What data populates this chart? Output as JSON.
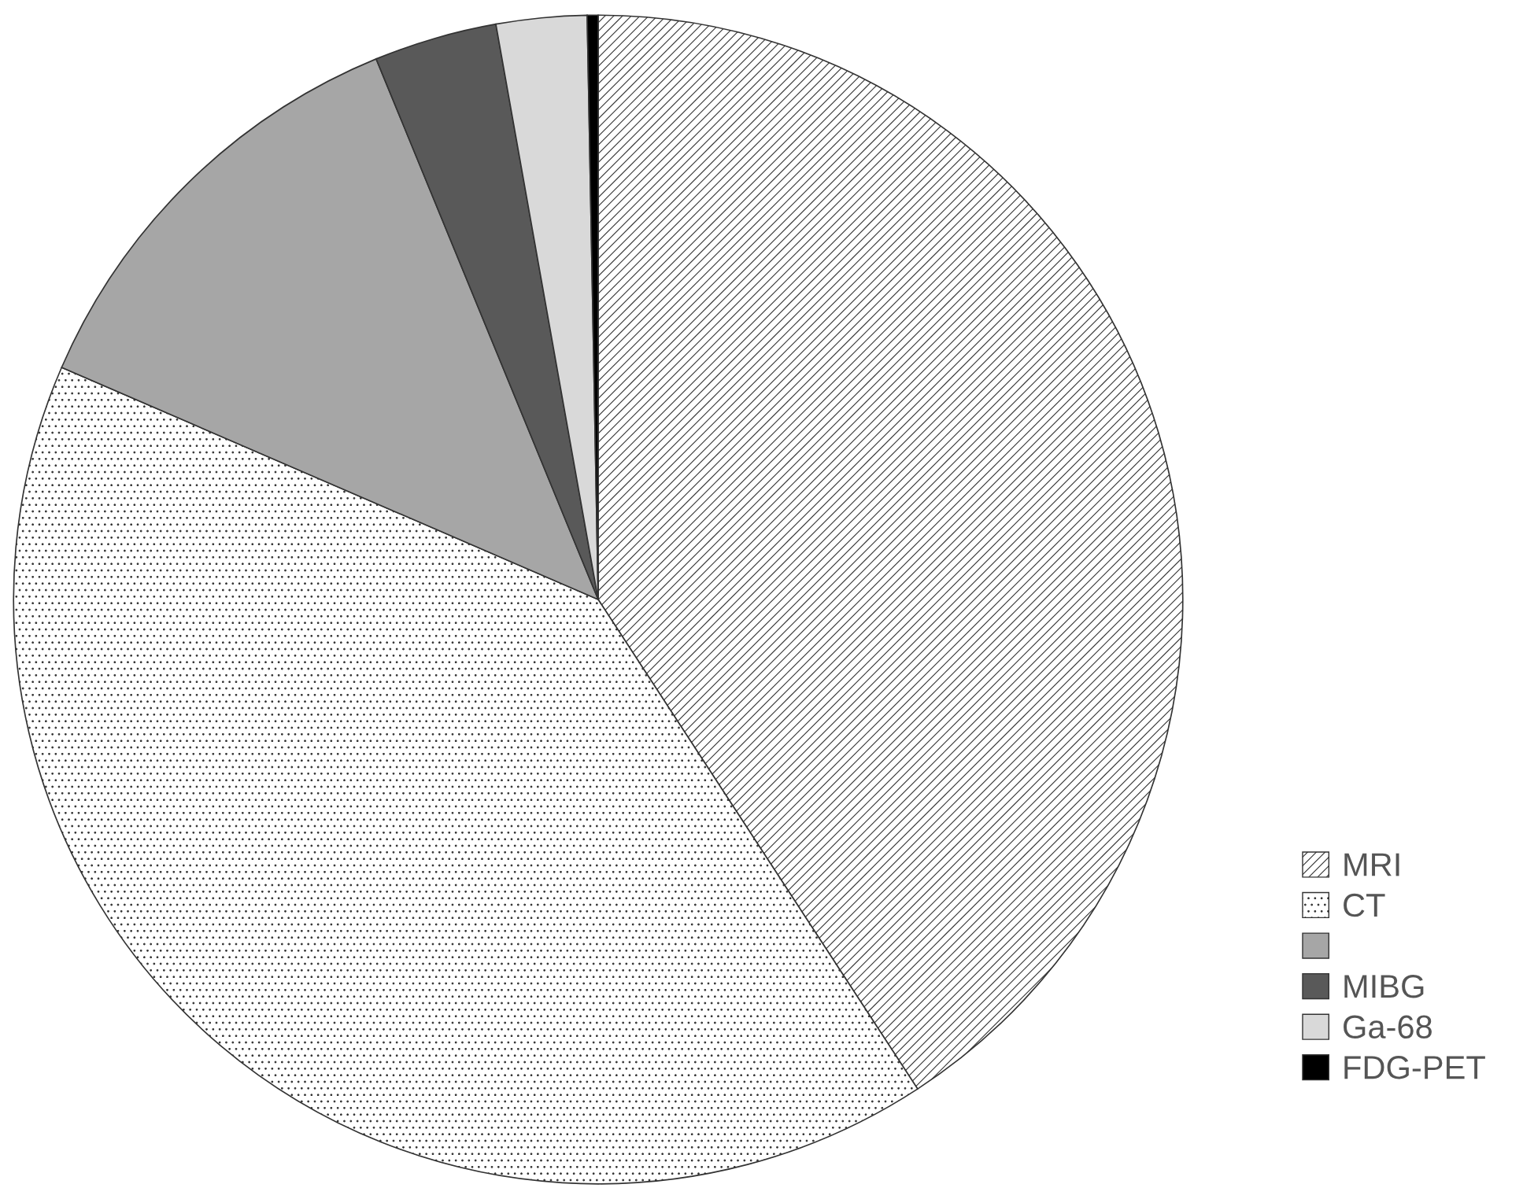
{
  "chart_data": {
    "type": "pie",
    "categories": [
      "MRI",
      "CT",
      null,
      "MIBG",
      "Ga-68",
      "FDG-PET"
    ],
    "values": [
      40.8,
      40.7,
      12.3,
      3.4,
      2.5,
      0.3
    ],
    "colors": [
      "#333333",
      "#333333",
      "#a6a6a6",
      "#595959",
      "#d9d9d9",
      "#000000"
    ],
    "legend": "bottom right"
  }
}
